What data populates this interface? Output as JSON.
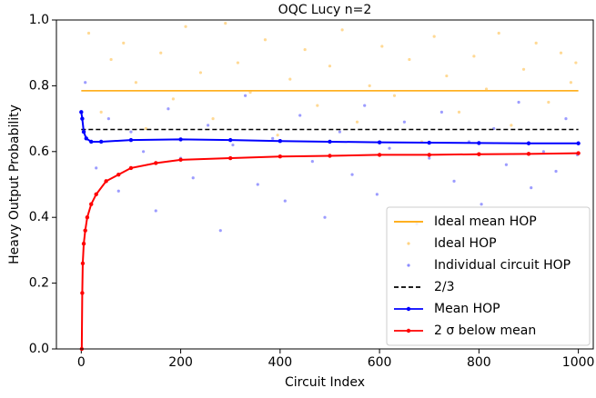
{
  "chart_data": {
    "type": "line",
    "title": "OQC Lucy n=2",
    "xlabel": "Circuit Index",
    "ylabel": "Heavy Output Probability",
    "xlim": [
      -50,
      1030
    ],
    "ylim": [
      0,
      1
    ],
    "xticks": [
      0,
      200,
      400,
      600,
      800,
      1000
    ],
    "yticks": [
      {
        "value": 0,
        "label": "0.0"
      },
      0.2,
      0.4,
      0.6,
      0.8,
      {
        "value": 1,
        "label": "1.0"
      }
    ],
    "legend": "lower right",
    "series": [
      {
        "name": "Ideal mean HOP",
        "type": "line",
        "color": "#ffa500",
        "x": [
          0,
          1000
        ],
        "values": [
          0.785,
          0.785
        ]
      },
      {
        "name": "Ideal HOP",
        "type": "scatter",
        "color": "#ffc04d",
        "x": [
          15,
          40,
          60,
          85,
          110,
          130,
          160,
          185,
          210,
          240,
          265,
          290,
          315,
          340,
          370,
          395,
          420,
          450,
          475,
          500,
          525,
          555,
          580,
          605,
          630,
          660,
          685,
          710,
          735,
          760,
          790,
          815,
          840,
          865,
          890,
          915,
          940,
          965,
          985,
          995
        ],
        "values": [
          0.96,
          0.72,
          0.88,
          0.93,
          0.81,
          0.67,
          0.9,
          0.76,
          0.98,
          0.84,
          0.7,
          0.99,
          0.87,
          0.78,
          0.94,
          0.65,
          0.82,
          0.91,
          0.74,
          0.86,
          0.97,
          0.69,
          0.8,
          0.92,
          0.77,
          0.88,
          0.63,
          0.95,
          0.83,
          0.72,
          0.89,
          0.79,
          0.96,
          0.68,
          0.85,
          0.93,
          0.75,
          0.9,
          0.81,
          0.87
        ]
      },
      {
        "name": "Individual circuit HOP",
        "type": "scatter",
        "color": "#5a5aff",
        "x": [
          8,
          30,
          55,
          75,
          100,
          125,
          150,
          175,
          200,
          225,
          255,
          280,
          305,
          330,
          355,
          385,
          410,
          440,
          465,
          490,
          520,
          545,
          570,
          595,
          620,
          650,
          675,
          700,
          725,
          750,
          780,
          805,
          830,
          855,
          880,
          905,
          930,
          955,
          975,
          998
        ],
        "values": [
          0.81,
          0.55,
          0.7,
          0.48,
          0.66,
          0.6,
          0.42,
          0.73,
          0.58,
          0.52,
          0.68,
          0.36,
          0.62,
          0.77,
          0.5,
          0.64,
          0.45,
          0.71,
          0.57,
          0.4,
          0.66,
          0.53,
          0.74,
          0.47,
          0.61,
          0.69,
          0.38,
          0.58,
          0.72,
          0.51,
          0.63,
          0.44,
          0.67,
          0.56,
          0.75,
          0.49,
          0.6,
          0.54,
          0.7,
          0.59
        ]
      },
      {
        "name": "2/3",
        "type": "dashed",
        "color": "#000000",
        "x": [
          0,
          1000
        ],
        "values": [
          0.667,
          0.667
        ]
      },
      {
        "name": "Mean HOP",
        "type": "marked",
        "color": "#0000ff",
        "x": [
          0,
          2,
          5,
          10,
          20,
          40,
          100,
          200,
          300,
          400,
          500,
          600,
          700,
          800,
          900,
          1000
        ],
        "values": [
          0.72,
          0.7,
          0.66,
          0.64,
          0.63,
          0.63,
          0.635,
          0.637,
          0.635,
          0.632,
          0.63,
          0.628,
          0.627,
          0.626,
          0.625,
          0.625
        ]
      },
      {
        "name": "2 σ below mean",
        "type": "marked",
        "color": "#ff0000",
        "x": [
          1,
          2,
          3,
          5,
          8,
          12,
          20,
          30,
          50,
          75,
          100,
          150,
          200,
          300,
          400,
          500,
          600,
          700,
          800,
          900,
          1000
        ],
        "values": [
          0.0,
          0.17,
          0.26,
          0.32,
          0.36,
          0.4,
          0.44,
          0.47,
          0.51,
          0.53,
          0.55,
          0.565,
          0.575,
          0.58,
          0.585,
          0.587,
          0.59,
          0.59,
          0.592,
          0.593,
          0.595
        ]
      }
    ]
  }
}
